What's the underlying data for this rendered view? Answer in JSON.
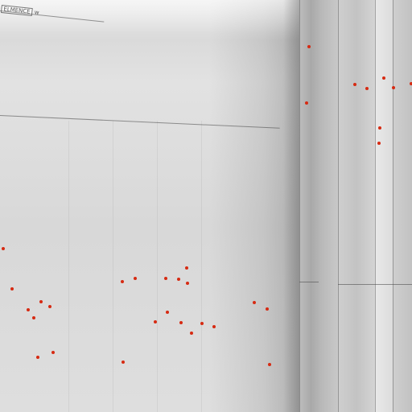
{
  "header": {
    "label_left": "ELMENCE",
    "label_right": "w"
  },
  "axis": {
    "ticks": [
      "",
      "",
      "",
      "",
      "",
      ""
    ]
  },
  "colors": {
    "dot": "#d62a12",
    "panel": "#dcdcdc"
  }
}
